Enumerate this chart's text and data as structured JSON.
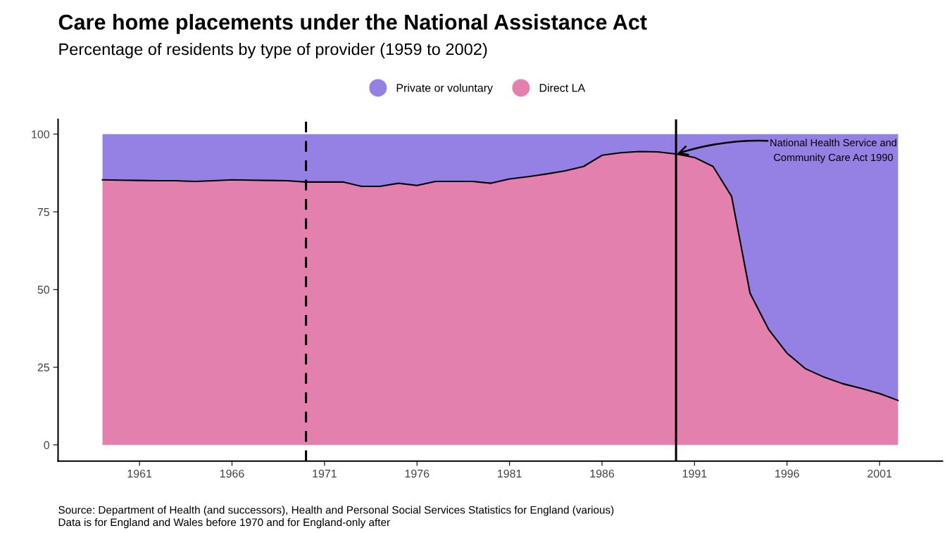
{
  "chart_data": {
    "type": "area",
    "stacked": true,
    "title": "Care home placements under the National Assistance Act",
    "subtitle": "Percentage of residents by type of provider (1959 to 2002)",
    "x": [
      1959,
      1960,
      1961,
      1962,
      1963,
      1964,
      1965,
      1966,
      1967,
      1968,
      1969,
      1970,
      1971,
      1972,
      1973,
      1974,
      1975,
      1976,
      1977,
      1978,
      1979,
      1980,
      1981,
      1982,
      1983,
      1984,
      1985,
      1986,
      1987,
      1988,
      1989,
      1990,
      1991,
      1992,
      1993,
      1994,
      1995,
      1996,
      1997,
      1998,
      1999,
      2000,
      2001,
      2002
    ],
    "series": [
      {
        "name": "Direct LA",
        "color": "#e380ae",
        "values": [
          85.3,
          85.2,
          85.1,
          85.0,
          85.0,
          84.8,
          85.0,
          85.3,
          85.2,
          85.1,
          85.0,
          84.6,
          84.6,
          84.6,
          83.2,
          83.2,
          84.2,
          83.5,
          84.8,
          84.8,
          84.8,
          84.2,
          85.6,
          86.3,
          87.2,
          88.2,
          89.6,
          93.2,
          94.0,
          94.4,
          94.3,
          93.6,
          92.5,
          89.6,
          80.0,
          48.8,
          37.2,
          29.5,
          24.5,
          21.8,
          19.7,
          18.2,
          16.5,
          14.3
        ]
      },
      {
        "name": "Private or voluntary",
        "color": "#9580e3",
        "values": [
          14.7,
          14.8,
          14.9,
          15.0,
          15.0,
          15.2,
          15.0,
          14.7,
          14.8,
          14.9,
          15.0,
          15.4,
          15.4,
          15.4,
          16.8,
          16.8,
          15.8,
          16.5,
          15.2,
          15.2,
          15.2,
          15.8,
          14.4,
          13.7,
          12.8,
          11.8,
          10.4,
          6.8,
          6.0,
          5.6,
          5.7,
          6.4,
          7.5,
          10.4,
          20.0,
          51.2,
          62.8,
          70.5,
          75.5,
          78.2,
          80.3,
          81.8,
          83.5,
          85.7
        ]
      }
    ],
    "xlim": [
      1956.6,
      2004.4
    ],
    "xticks": [
      1961,
      1966,
      1971,
      1976,
      1981,
      1986,
      1991,
      1996,
      2001
    ],
    "ylim": [
      -5.2,
      104.75
    ],
    "yticks": [
      0,
      25,
      50,
      75,
      100
    ],
    "ref_lines": [
      {
        "axis": "x",
        "value": 1970,
        "line_style": "dashed",
        "color": "#000000"
      },
      {
        "axis": "x",
        "value": 1990,
        "line_style": "solid",
        "color": "#000000"
      }
    ],
    "annotations": [
      {
        "text": "National Health Service and\nCommunity Care Act 1990",
        "x": 1990,
        "y": 93.6
      },
      "Source: Department of Health (and successors), Health and Personal Social Services Statistics for England (various)\nData is for England and Wales before 1970 and for England-only after"
    ],
    "legend": "top",
    "grid": false
  }
}
